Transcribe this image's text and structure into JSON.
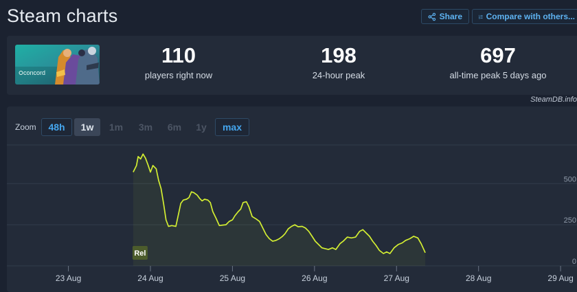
{
  "page": {
    "title": "Steam charts"
  },
  "header": {
    "share_label": "Share",
    "compare_label": "Compare with others..."
  },
  "stats": {
    "game_logo_text": "concord",
    "players_now": {
      "value": "110",
      "label": "players right now"
    },
    "peak_24h": {
      "value": "198",
      "label": "24-hour peak"
    },
    "all_time_peak": {
      "value": "697",
      "label": "all-time peak 5 days ago"
    },
    "credit": "SteamDB.info"
  },
  "zoom": {
    "label": "Zoom",
    "options": [
      {
        "label": "48h",
        "state": "active-blue"
      },
      {
        "label": "1w",
        "state": "active-gray"
      },
      {
        "label": "1m",
        "state": "disabled"
      },
      {
        "label": "3m",
        "state": "disabled"
      },
      {
        "label": "6m",
        "state": "disabled"
      },
      {
        "label": "1y",
        "state": "disabled"
      },
      {
        "label": "max",
        "state": "active-blue"
      }
    ]
  },
  "chart_data": {
    "type": "line",
    "title": "",
    "xlabel": "",
    "ylabel": "",
    "x_ticks": [
      "23 Aug",
      "24 Aug",
      "25 Aug",
      "26 Aug",
      "27 Aug",
      "28 Aug",
      "29 Aug"
    ],
    "y_ticks": [
      0,
      250,
      500
    ],
    "xlim": [
      -0.75,
      6.2
    ],
    "ylim": [
      0,
      735
    ],
    "grid": true,
    "line_color": "#d4ef32",
    "annotation": {
      "label": "Rel",
      "x": 0.79
    },
    "series": [
      {
        "points": [
          [
            0.79,
            570
          ],
          [
            0.81,
            590
          ],
          [
            0.83,
            610
          ],
          [
            0.85,
            665
          ],
          [
            0.88,
            650
          ],
          [
            0.91,
            680
          ],
          [
            0.94,
            655
          ],
          [
            0.97,
            615
          ],
          [
            1.0,
            570
          ],
          [
            1.03,
            610
          ],
          [
            1.07,
            590
          ],
          [
            1.1,
            520
          ],
          [
            1.13,
            470
          ],
          [
            1.16,
            380
          ],
          [
            1.19,
            280
          ],
          [
            1.22,
            240
          ],
          [
            1.26,
            245
          ],
          [
            1.31,
            240
          ],
          [
            1.34,
            310
          ],
          [
            1.37,
            380
          ],
          [
            1.4,
            400
          ],
          [
            1.44,
            405
          ],
          [
            1.47,
            415
          ],
          [
            1.5,
            450
          ],
          [
            1.53,
            445
          ],
          [
            1.57,
            430
          ],
          [
            1.6,
            410
          ],
          [
            1.63,
            395
          ],
          [
            1.66,
            405
          ],
          [
            1.7,
            400
          ],
          [
            1.73,
            385
          ],
          [
            1.76,
            330
          ],
          [
            1.8,
            290
          ],
          [
            1.84,
            245
          ],
          [
            1.88,
            248
          ],
          [
            1.92,
            250
          ],
          [
            1.96,
            270
          ],
          [
            2.0,
            280
          ],
          [
            2.03,
            305
          ],
          [
            2.07,
            330
          ],
          [
            2.1,
            345
          ],
          [
            2.13,
            385
          ],
          [
            2.17,
            390
          ],
          [
            2.2,
            360
          ],
          [
            2.24,
            300
          ],
          [
            2.29,
            285
          ],
          [
            2.33,
            270
          ],
          [
            2.37,
            230
          ],
          [
            2.41,
            190
          ],
          [
            2.45,
            165
          ],
          [
            2.49,
            150
          ],
          [
            2.53,
            155
          ],
          [
            2.57,
            165
          ],
          [
            2.61,
            180
          ],
          [
            2.64,
            195
          ],
          [
            2.68,
            225
          ],
          [
            2.72,
            240
          ],
          [
            2.76,
            250
          ],
          [
            2.8,
            238
          ],
          [
            2.85,
            240
          ],
          [
            2.89,
            230
          ],
          [
            2.93,
            210
          ],
          [
            2.97,
            180
          ],
          [
            3.01,
            150
          ],
          [
            3.05,
            130
          ],
          [
            3.09,
            110
          ],
          [
            3.13,
            105
          ],
          [
            3.17,
            100
          ],
          [
            3.22,
            110
          ],
          [
            3.26,
            100
          ],
          [
            3.31,
            135
          ],
          [
            3.35,
            150
          ],
          [
            3.4,
            175
          ],
          [
            3.45,
            170
          ],
          [
            3.5,
            175
          ],
          [
            3.55,
            210
          ],
          [
            3.59,
            220
          ],
          [
            3.63,
            200
          ],
          [
            3.67,
            180
          ],
          [
            3.71,
            150
          ],
          [
            3.75,
            125
          ],
          [
            3.79,
            95
          ],
          [
            3.84,
            75
          ],
          [
            3.88,
            85
          ],
          [
            3.92,
            75
          ],
          [
            3.97,
            110
          ],
          [
            4.02,
            130
          ],
          [
            4.07,
            140
          ],
          [
            4.11,
            155
          ],
          [
            4.16,
            165
          ],
          [
            4.21,
            180
          ],
          [
            4.26,
            170
          ],
          [
            4.3,
            135
          ],
          [
            4.35,
            80
          ]
        ]
      }
    ]
  }
}
